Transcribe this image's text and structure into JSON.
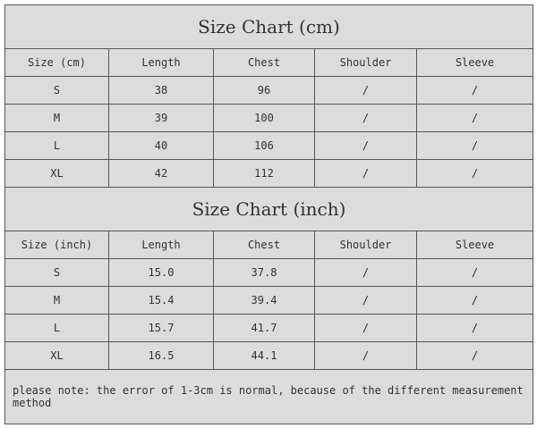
{
  "cm_table": {
    "title": "Size Chart (cm)",
    "headers": [
      "Size (cm)",
      "Length",
      "Chest",
      "Shoulder",
      "Sleeve"
    ],
    "rows": [
      [
        "S",
        "38",
        "96",
        "/",
        "/"
      ],
      [
        "M",
        "39",
        "100",
        "/",
        "/"
      ],
      [
        "L",
        "40",
        "106",
        "/",
        "/"
      ],
      [
        "XL",
        "42",
        "112",
        "/",
        "/"
      ]
    ]
  },
  "inch_table": {
    "title": "Size Chart (inch)",
    "headers": [
      "Size (inch)",
      "Length",
      "Chest",
      "Shoulder",
      "Sleeve"
    ],
    "rows": [
      [
        "S",
        "15.0",
        "37.8",
        "/",
        "/"
      ],
      [
        "M",
        "15.4",
        "39.4",
        "/",
        "/"
      ],
      [
        "L",
        "15.7",
        "41.7",
        "/",
        "/"
      ],
      [
        "XL",
        "16.5",
        "44.1",
        "/",
        "/"
      ]
    ]
  },
  "note": "please note: the error of 1-3cm is normal, because of the different measurement method"
}
